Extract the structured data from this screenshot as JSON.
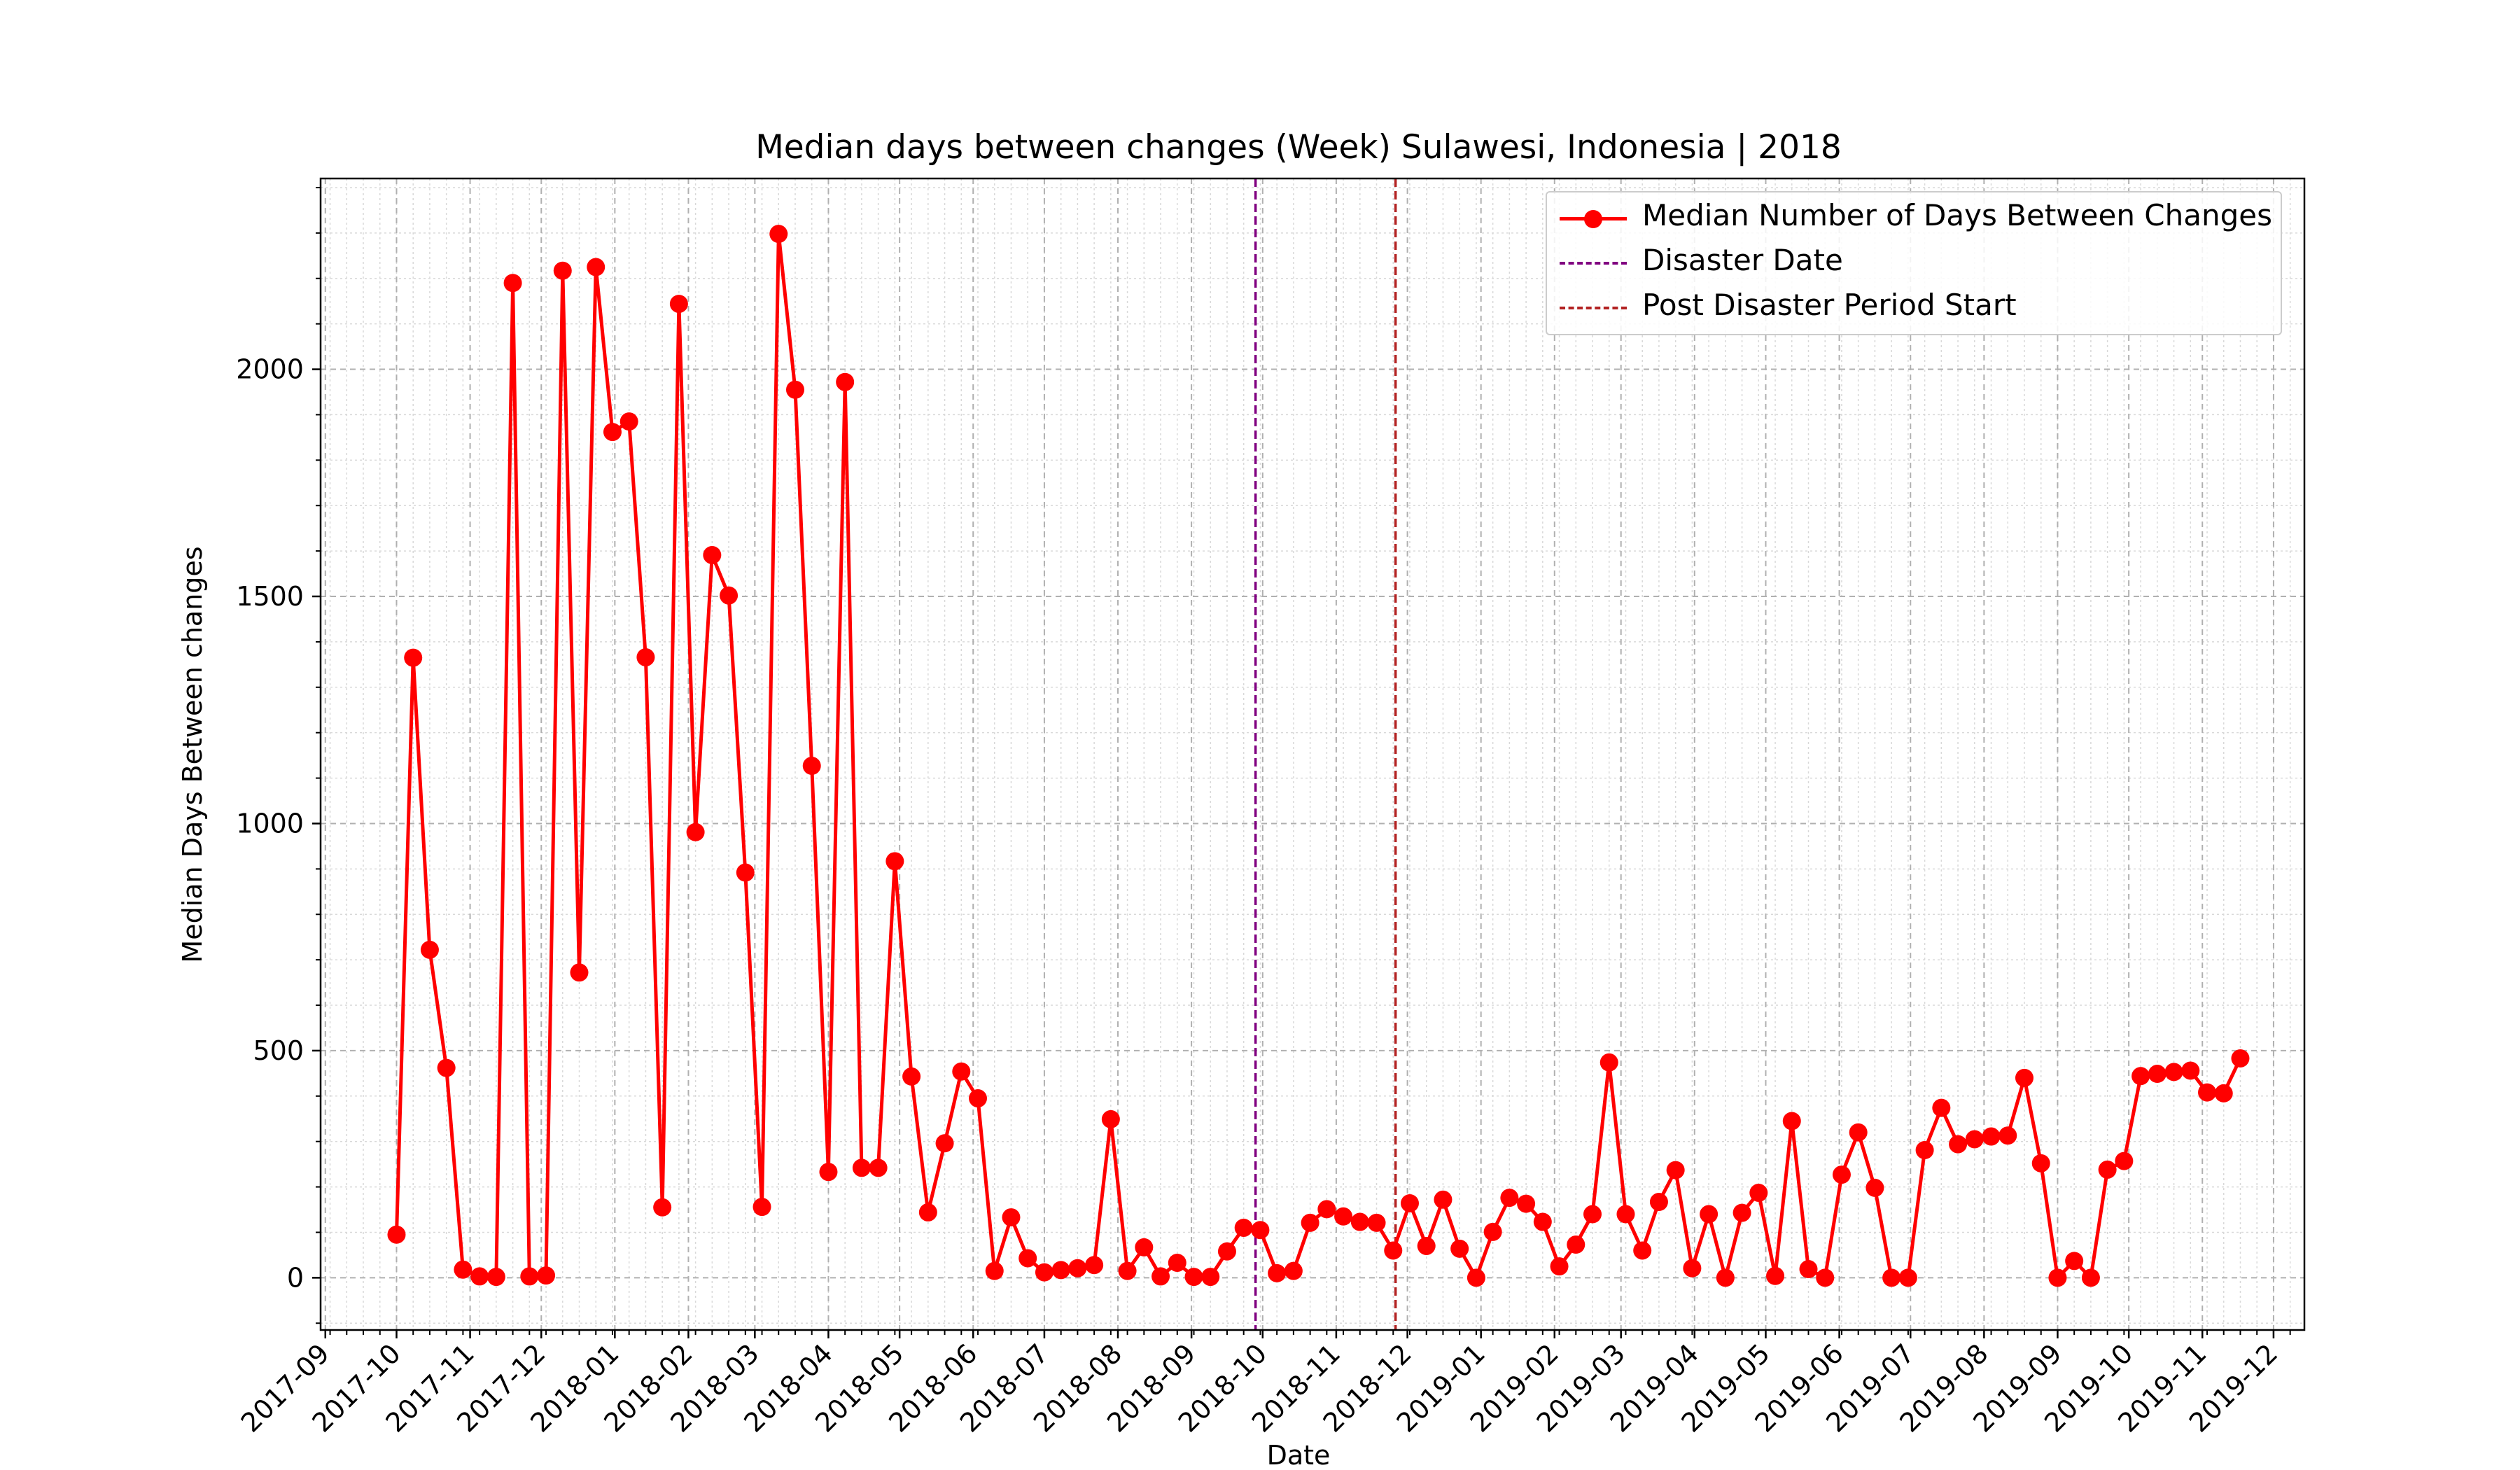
{
  "chart_data": {
    "type": "line",
    "title": "Median days between changes (Week) Sulawesi, Indonesia | 2018",
    "xlabel": "Date",
    "ylabel": "Median Days Between changes",
    "xlim": [
      "2017-08-30",
      "2019-12-14"
    ],
    "ylim": [
      -115,
      2420
    ],
    "yticks": [
      0,
      500,
      1000,
      1500,
      2000
    ],
    "xticks": [
      "2017-09",
      "2017-10",
      "2017-11",
      "2017-12",
      "2018-01",
      "2018-02",
      "2018-03",
      "2018-04",
      "2018-05",
      "2018-06",
      "2018-07",
      "2018-08",
      "2018-09",
      "2018-10",
      "2018-11",
      "2018-12",
      "2019-01",
      "2019-02",
      "2019-03",
      "2019-04",
      "2019-05",
      "2019-06",
      "2019-07",
      "2019-08",
      "2019-09",
      "2019-10",
      "2019-11",
      "2019-12"
    ],
    "grid": true,
    "legend_position": "top-right",
    "series": [
      {
        "name": "Median Number of Days Between Changes",
        "color": "#ff0000",
        "marker": "circle",
        "x": [
          "2017-10-01",
          "2017-10-08",
          "2017-10-15",
          "2017-10-22",
          "2017-10-29",
          "2017-11-05",
          "2017-11-12",
          "2017-11-19",
          "2017-11-26",
          "2017-12-03",
          "2017-12-10",
          "2017-12-17",
          "2017-12-24",
          "2017-12-31",
          "2018-01-07",
          "2018-01-14",
          "2018-01-21",
          "2018-01-28",
          "2018-02-04",
          "2018-02-11",
          "2018-02-18",
          "2018-02-25",
          "2018-03-04",
          "2018-03-11",
          "2018-03-18",
          "2018-03-25",
          "2018-04-01",
          "2018-04-08",
          "2018-04-15",
          "2018-04-22",
          "2018-04-29",
          "2018-05-06",
          "2018-05-13",
          "2018-05-20",
          "2018-05-27",
          "2018-06-03",
          "2018-06-10",
          "2018-06-17",
          "2018-06-24",
          "2018-07-01",
          "2018-07-08",
          "2018-07-15",
          "2018-07-22",
          "2018-07-29",
          "2018-08-05",
          "2018-08-12",
          "2018-08-19",
          "2018-08-26",
          "2018-09-02",
          "2018-09-09",
          "2018-09-16",
          "2018-09-23",
          "2018-09-30",
          "2018-10-07",
          "2018-10-14",
          "2018-10-21",
          "2018-10-28",
          "2018-11-04",
          "2018-11-11",
          "2018-11-18",
          "2018-11-25",
          "2018-12-02",
          "2018-12-09",
          "2018-12-16",
          "2018-12-23",
          "2018-12-30",
          "2019-01-06",
          "2019-01-13",
          "2019-01-20",
          "2019-01-27",
          "2019-02-03",
          "2019-02-10",
          "2019-02-17",
          "2019-02-24",
          "2019-03-03",
          "2019-03-10",
          "2019-03-17",
          "2019-03-24",
          "2019-03-31",
          "2019-04-07",
          "2019-04-14",
          "2019-04-21",
          "2019-04-28",
          "2019-05-05",
          "2019-05-12",
          "2019-05-19",
          "2019-05-26",
          "2019-06-02",
          "2019-06-09",
          "2019-06-16",
          "2019-06-23",
          "2019-06-30",
          "2019-07-07",
          "2019-07-14",
          "2019-07-21",
          "2019-07-28",
          "2019-08-04",
          "2019-08-11",
          "2019-08-18",
          "2019-08-25",
          "2019-09-01",
          "2019-09-08",
          "2019-09-15",
          "2019-09-22",
          "2019-09-29",
          "2019-10-06",
          "2019-10-13",
          "2019-10-20",
          "2019-10-27",
          "2019-11-03",
          "2019-11-10",
          "2019-11-17"
        ],
        "y": [
          95,
          1365,
          722,
          462,
          18,
          3,
          2,
          2190,
          3,
          5,
          2217,
          672,
          2225,
          1862,
          1885,
          1366,
          155,
          2144,
          981,
          1591,
          1502,
          892,
          156,
          2298,
          1955,
          1127,
          233,
          1972,
          242,
          242,
          917,
          443,
          144,
          296,
          454,
          395,
          15,
          133,
          43,
          12,
          17,
          21,
          28,
          349,
          15,
          67,
          3,
          33,
          2,
          2,
          58,
          110,
          105,
          10,
          15,
          121,
          151,
          135,
          123,
          121,
          60,
          164,
          70,
          172,
          64,
          0,
          101,
          176,
          163,
          123,
          25,
          73,
          140,
          474,
          140,
          60,
          167,
          237,
          21,
          140,
          0,
          143,
          187,
          4,
          345,
          19,
          0,
          227,
          320,
          198,
          0,
          0,
          281,
          374,
          294,
          305,
          311,
          313,
          440,
          252,
          0,
          37,
          0,
          238,
          257,
          444,
          449,
          453,
          456,
          408,
          406,
          483
        ]
      }
    ],
    "vlines": [
      {
        "name": "Disaster Date",
        "x": "2018-09-28",
        "color": "#800080",
        "style": "dashed"
      },
      {
        "name": "Post Disaster Period Start",
        "x": "2018-11-26",
        "color": "#b22222",
        "style": "dashed"
      }
    ]
  }
}
